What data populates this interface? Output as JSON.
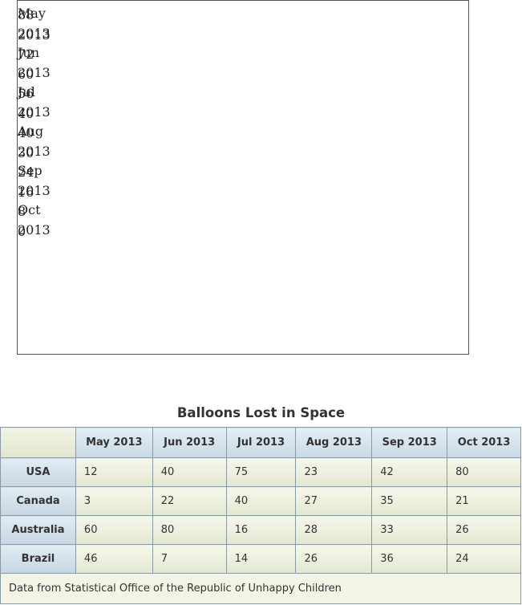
{
  "chart_fallback": {
    "labels": [
      "May",
      "2013",
      "Jun",
      "2013",
      "Jul",
      "2013",
      "Aug",
      "2013",
      "Sep",
      "2013",
      "Oct",
      "2013"
    ],
    "values": [
      "88",
      "2013",
      "72",
      "60",
      "56",
      "40",
      "40",
      "30",
      "24",
      "16",
      "8",
      "0"
    ]
  },
  "table": {
    "caption": "Balloons Lost in Space",
    "corner": "",
    "columns": [
      "May 2013",
      "Jun 2013",
      "Jul 2013",
      "Aug 2013",
      "Sep 2013",
      "Oct 2013"
    ],
    "rows": [
      {
        "label": "USA",
        "values": [
          "12",
          "40",
          "75",
          "23",
          "42",
          "80"
        ]
      },
      {
        "label": "Canada",
        "values": [
          "3",
          "22",
          "40",
          "27",
          "35",
          "21"
        ]
      },
      {
        "label": "Australia",
        "values": [
          "60",
          "80",
          "16",
          "28",
          "33",
          "26"
        ]
      },
      {
        "label": "Brazil",
        "values": [
          "46",
          "7",
          "14",
          "26",
          "36",
          "24"
        ]
      }
    ],
    "footer": "Data from Statistical Office of the Republic of Unhappy Children"
  }
}
